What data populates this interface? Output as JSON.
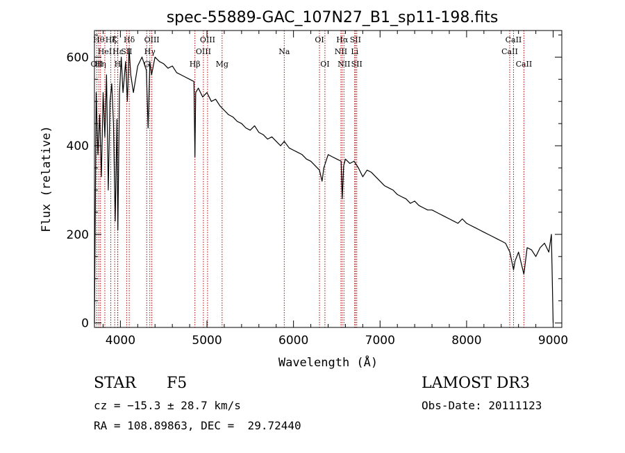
{
  "chart_data": {
    "type": "line",
    "title": "spec-55889-GAC_107N27_B1_sp11-198.fits",
    "xlabel": "Wavelength (Å)",
    "ylabel": "Flux (relative)",
    "xlim": [
      3700,
      9100
    ],
    "ylim": [
      -10,
      660
    ],
    "x_ticks": [
      4000,
      5000,
      6000,
      7000,
      8000,
      9000
    ],
    "y_ticks": [
      0,
      200,
      400,
      600
    ],
    "grid": false,
    "series": [
      {
        "color": "#000000",
        "x": [
          3700,
          3720,
          3740,
          3760,
          3780,
          3800,
          3820,
          3840,
          3860,
          3880,
          3900,
          3920,
          3940,
          3960,
          3970,
          3990,
          4010,
          4030,
          4060,
          4080,
          4100,
          4120,
          4150,
          4200,
          4250,
          4300,
          4320,
          4340,
          4360,
          4400,
          4450,
          4500,
          4550,
          4600,
          4650,
          4700,
          4750,
          4800,
          4850,
          4861,
          4870,
          4900,
          4950,
          5000,
          5050,
          5100,
          5150,
          5200,
          5250,
          5300,
          5350,
          5400,
          5450,
          5500,
          5550,
          5600,
          5650,
          5700,
          5750,
          5800,
          5850,
          5893,
          5950,
          6000,
          6050,
          6100,
          6150,
          6200,
          6250,
          6300,
          6330,
          6350,
          6400,
          6450,
          6500,
          6550,
          6563,
          6580,
          6600,
          6650,
          6700,
          6750,
          6800,
          6850,
          6900,
          6950,
          7000,
          7050,
          7100,
          7150,
          7200,
          7250,
          7300,
          7350,
          7400,
          7450,
          7500,
          7550,
          7600,
          7650,
          7700,
          7750,
          7800,
          7850,
          7900,
          7950,
          8000,
          8050,
          8100,
          8150,
          8200,
          8250,
          8300,
          8350,
          8400,
          8450,
          8500,
          8542,
          8560,
          8600,
          8662,
          8700,
          8750,
          8800,
          8850,
          8900,
          8950,
          8980,
          9000
        ],
        "y": [
          0,
          520,
          380,
          470,
          330,
          520,
          420,
          560,
          300,
          500,
          540,
          450,
          230,
          460,
          210,
          520,
          600,
          520,
          590,
          500,
          620,
          560,
          520,
          580,
          600,
          570,
          440,
          590,
          560,
          600,
          590,
          585,
          575,
          580,
          565,
          560,
          555,
          550,
          545,
          375,
          520,
          530,
          510,
          520,
          500,
          505,
          490,
          480,
          470,
          465,
          455,
          450,
          440,
          435,
          445,
          430,
          425,
          415,
          420,
          410,
          400,
          410,
          395,
          390,
          385,
          380,
          370,
          365,
          355,
          345,
          320,
          350,
          380,
          375,
          370,
          365,
          280,
          355,
          370,
          360,
          365,
          350,
          330,
          345,
          340,
          330,
          320,
          310,
          305,
          300,
          290,
          285,
          280,
          270,
          275,
          265,
          260,
          255,
          255,
          250,
          245,
          240,
          235,
          230,
          225,
          235,
          225,
          220,
          215,
          210,
          205,
          200,
          195,
          190,
          185,
          180,
          160,
          120,
          140,
          160,
          110,
          170,
          165,
          150,
          170,
          180,
          160,
          200,
          0
        ]
      }
    ],
    "lines": [
      {
        "x": 3727,
        "label": "OII",
        "row": 3
      },
      {
        "x": 3750,
        "label": "Hθ",
        "row": 1
      },
      {
        "x": 3770,
        "label": "Hη",
        "row": 3
      },
      {
        "x": 3820,
        "label": "HeI",
        "row": 2
      },
      {
        "x": 3889,
        "label": "Hζ",
        "row": 1
      },
      {
        "x": 3934,
        "label": "K",
        "row": 1
      },
      {
        "x": 3968,
        "label": "H",
        "row": 3
      },
      {
        "x": 3970,
        "label": "Hε",
        "row": 2
      },
      {
        "x": 4072,
        "label": "SII",
        "row": 2
      },
      {
        "x": 4102,
        "label": "Hδ",
        "row": 1
      },
      {
        "x": 4304,
        "label": "G",
        "row": 3
      },
      {
        "x": 4340,
        "label": "Hγ",
        "row": 2
      },
      {
        "x": 4363,
        "label": "OIII",
        "row": 1
      },
      {
        "x": 4861,
        "label": "Hβ",
        "row": 3
      },
      {
        "x": 4959,
        "label": "OIII",
        "row": 2
      },
      {
        "x": 5007,
        "label": "OIII",
        "row": 1
      },
      {
        "x": 5175,
        "label": "Mg",
        "row": 3
      },
      {
        "x": 5893,
        "label": "Na",
        "row": 2
      },
      {
        "x": 6300,
        "label": "OI",
        "row": 1
      },
      {
        "x": 6363,
        "label": "OI",
        "row": 3
      },
      {
        "x": 6548,
        "label": "NII",
        "row": 2
      },
      {
        "x": 6563,
        "label": "Hα",
        "row": 1
      },
      {
        "x": 6583,
        "label": "NII",
        "row": 3
      },
      {
        "x": 6707,
        "label": "Li",
        "row": 2
      },
      {
        "x": 6716,
        "label": "SII",
        "row": 1
      },
      {
        "x": 6731,
        "label": "SII",
        "row": 3
      },
      {
        "x": 8498,
        "label": "CaII",
        "row": 2
      },
      {
        "x": 8542,
        "label": "CaII",
        "row": 1
      },
      {
        "x": 8662,
        "label": "CaII",
        "row": 3
      }
    ]
  },
  "info": {
    "object_class": "STAR",
    "subclass": "F5",
    "cz": "cz = −15.3 ± 28.7 km/s",
    "coords": "RA = 108.89863, DEC =  29.72440",
    "survey": "LAMOST DR3",
    "obs_date": "Obs-Date: 20111123"
  },
  "colors": {
    "spectrum": "#000000",
    "line_markers": "#b00000",
    "axes": "#000000"
  }
}
